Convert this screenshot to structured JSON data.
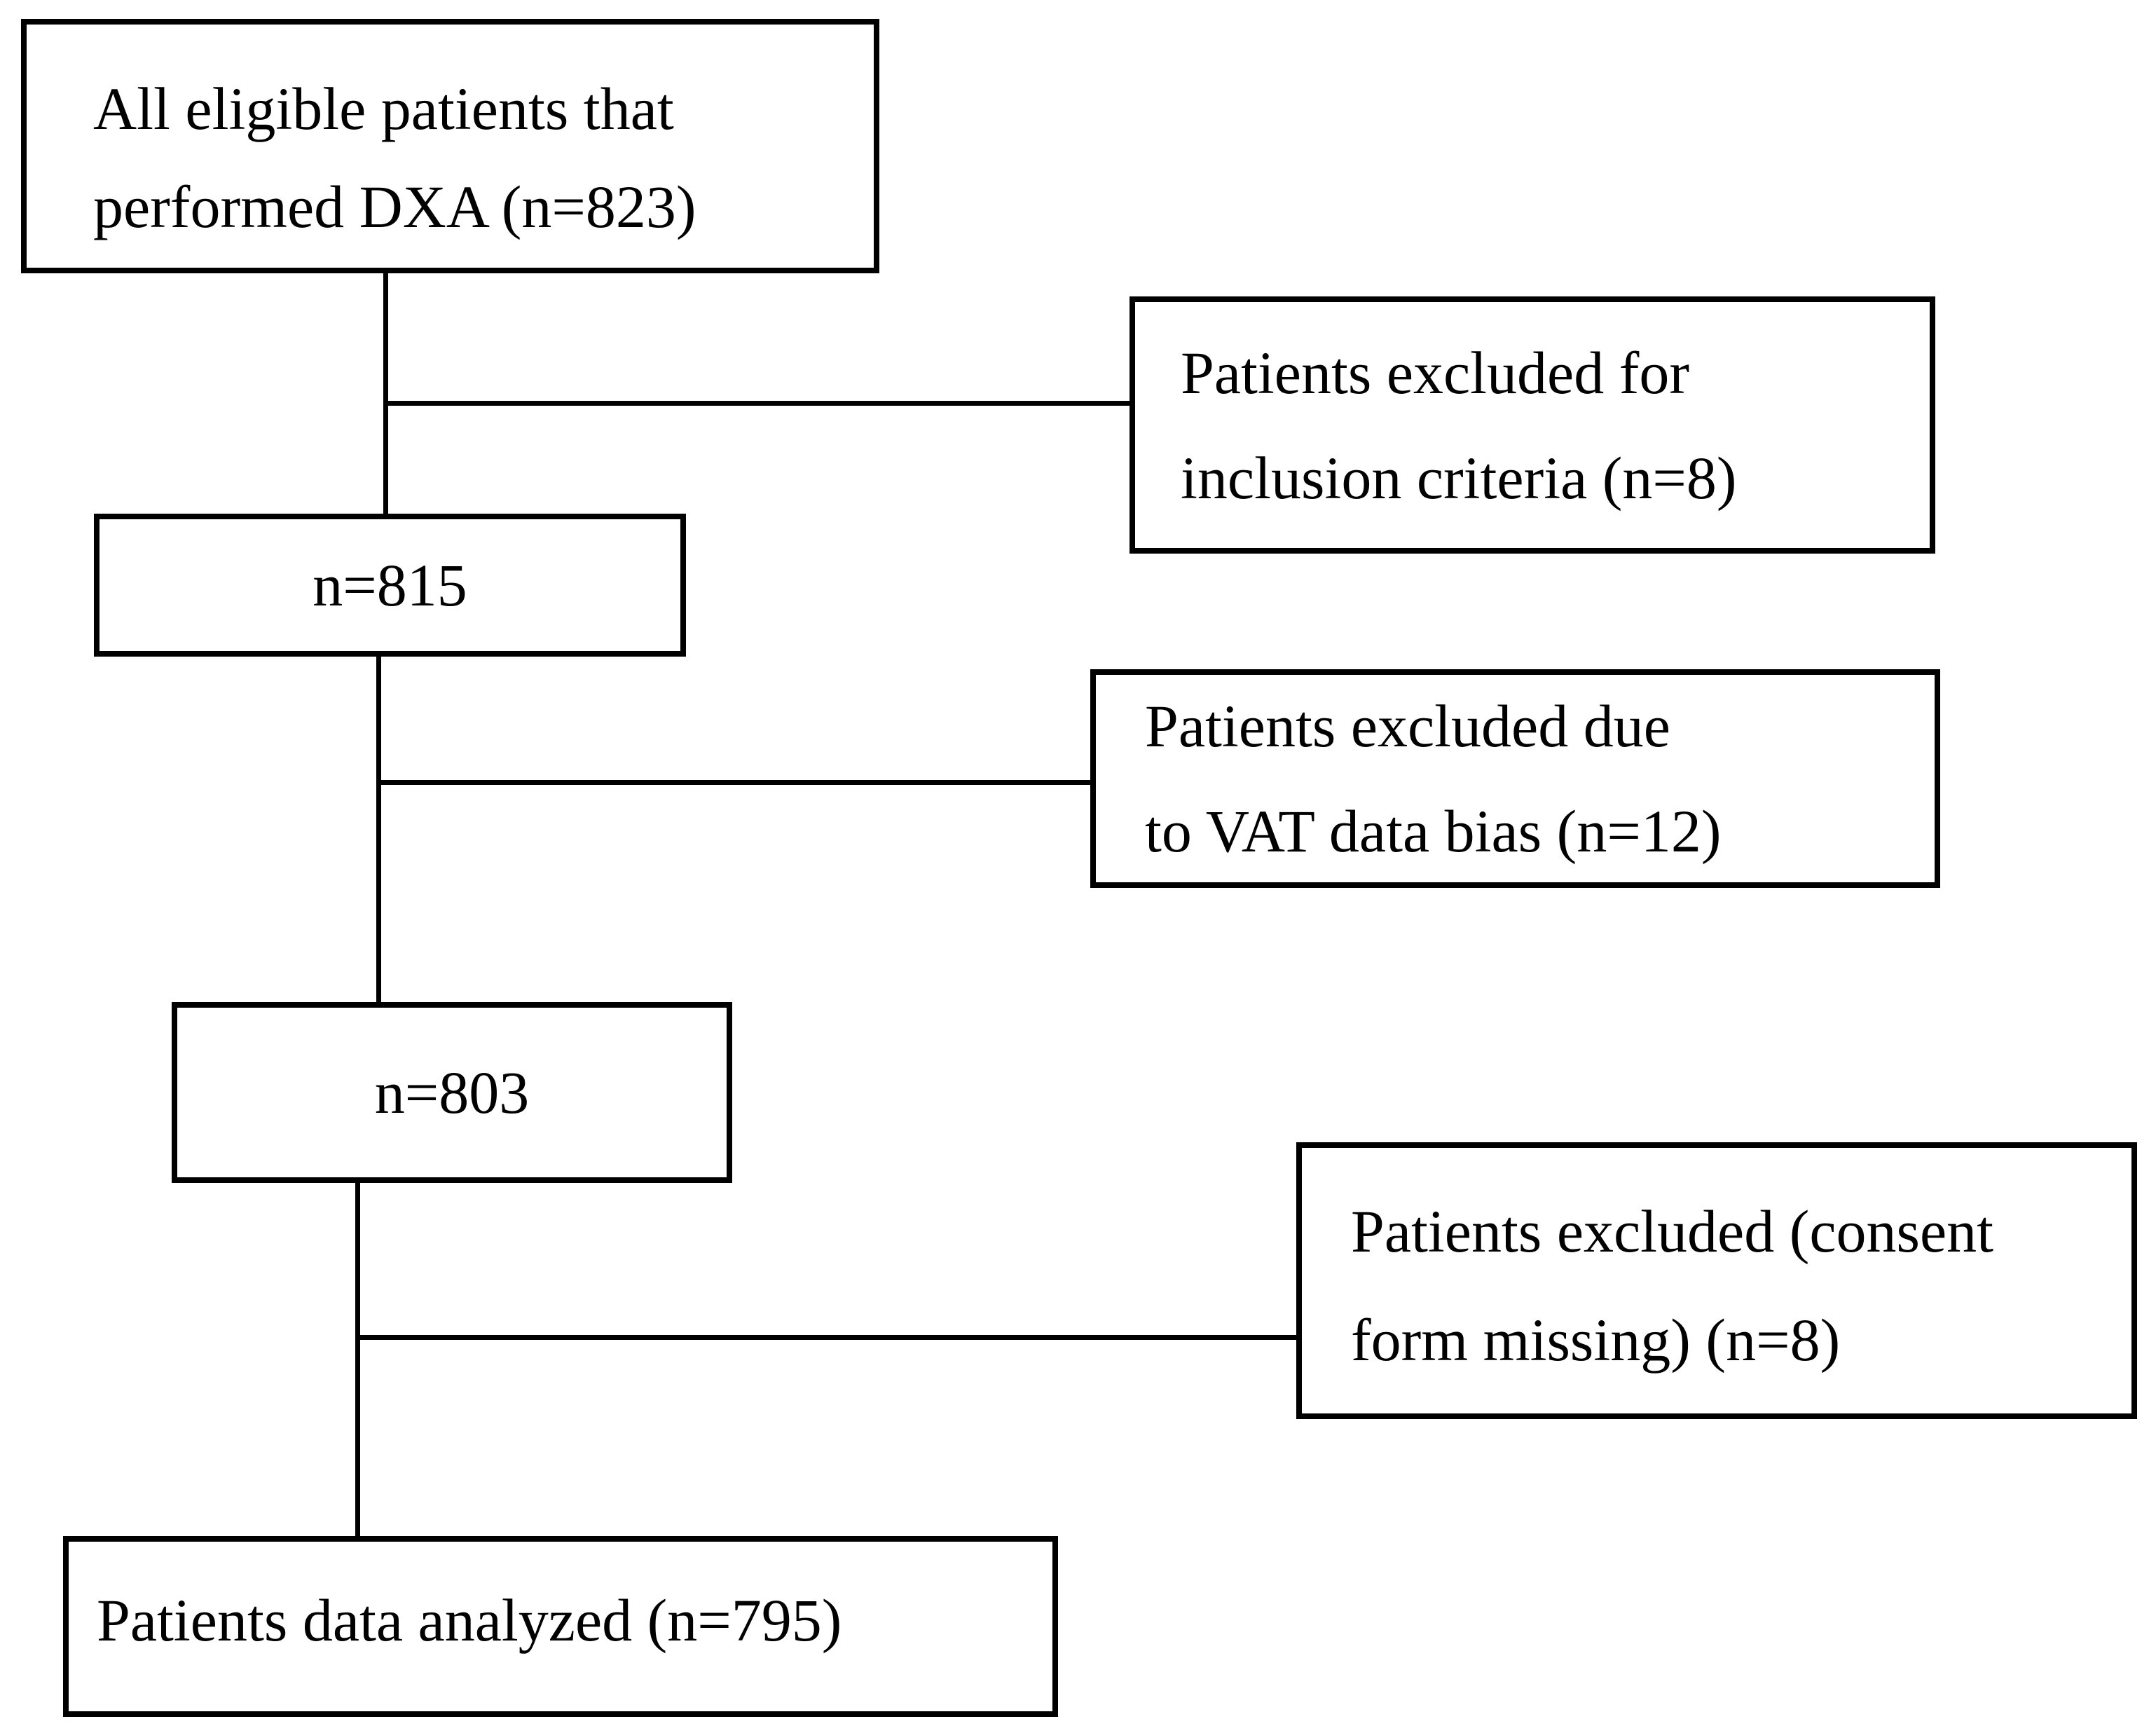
{
  "boxes": {
    "all_eligible": {
      "line1": "All eligible patients that",
      "line2": "performed DXA (n=823)"
    },
    "excluded_inclusion": {
      "line1": "Patients excluded for",
      "line2": "inclusion criteria (n=8)"
    },
    "n815": {
      "label": "n=815"
    },
    "excluded_vat": {
      "line1": "Patients excluded due",
      "line2": "to VAT data bias (n=12)"
    },
    "n803": {
      "label": "n=803"
    },
    "excluded_consent": {
      "line1": "Patients excluded (consent",
      "line2": "form missing) (n=8)"
    },
    "analyzed": {
      "label": "Patients data analyzed (n=795)"
    }
  },
  "colors": {
    "line": "#000000",
    "background": "#ffffff",
    "text": "#000000"
  }
}
